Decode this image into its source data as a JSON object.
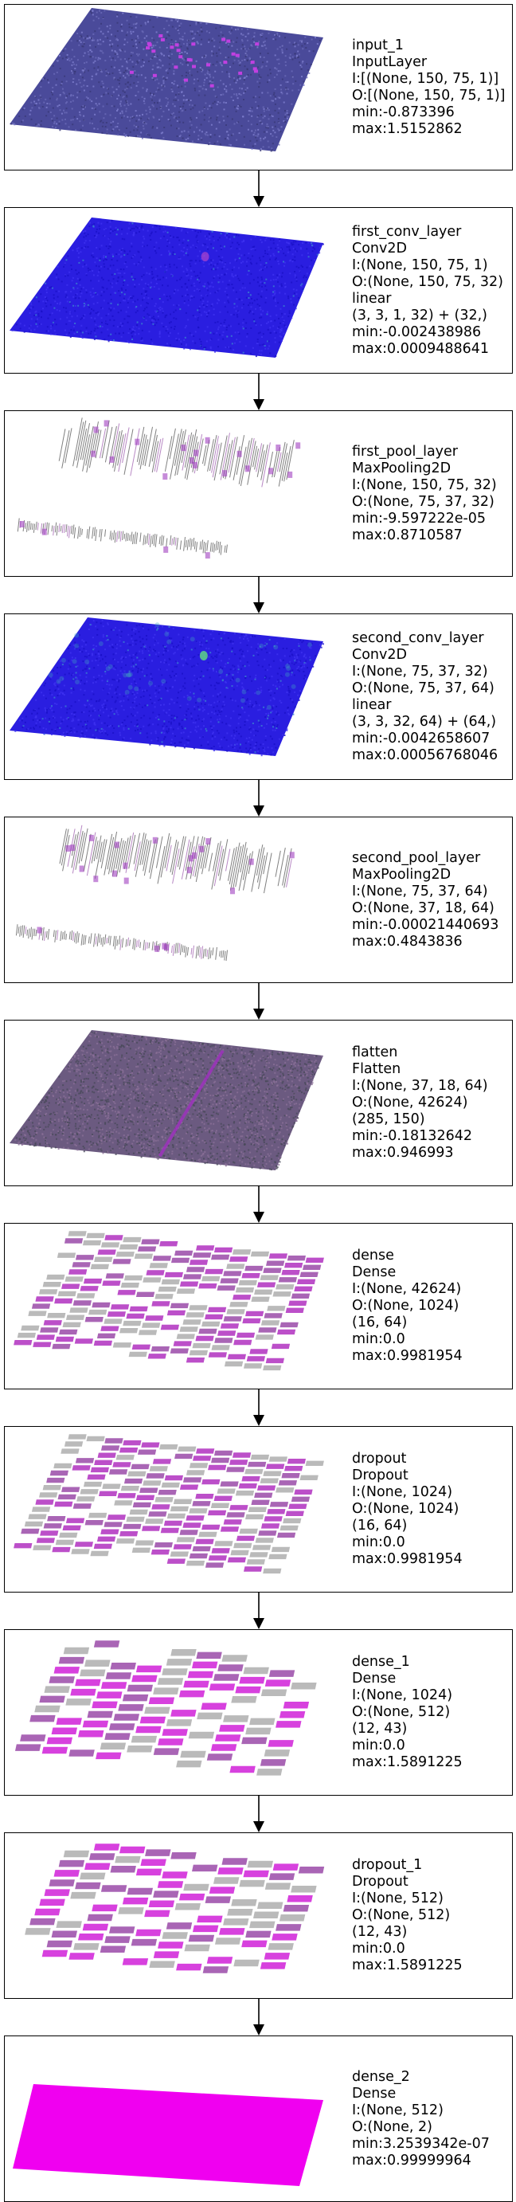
{
  "diagram": {
    "layers": [
      {
        "id": "input-1",
        "viz": "flat",
        "lines": [
          "input_1",
          "InputLayer",
          "I:[(None, 150, 75, 1)]",
          "O:[(None, 150, 75, 1)]",
          "min:-0.873396",
          "max:1.5152862"
        ]
      },
      {
        "id": "first-conv-layer",
        "viz": "flat",
        "lines": [
          "first_conv_layer",
          "Conv2D",
          "I:(None, 150, 75, 1)",
          "O:(None, 150, 75, 32)",
          "linear",
          "(3, 3, 1, 32) + (32,)",
          "min:-0.002438986",
          "max:0.0009488641"
        ]
      },
      {
        "id": "first-pool-layer",
        "viz": "stripes",
        "lines": [
          "first_pool_layer",
          "MaxPooling2D",
          "I:(None, 150, 75, 32)",
          "O:(None, 75, 37, 32)",
          "min:-9.597222e-05",
          "max:0.8710587"
        ]
      },
      {
        "id": "second-conv-layer",
        "viz": "flat",
        "lines": [
          "second_conv_layer",
          "Conv2D",
          "I:(None, 75, 37, 32)",
          "O:(None, 75, 37, 64)",
          "linear",
          "(3, 3, 32, 64) + (64,)",
          "min:-0.0042658607",
          "max:0.00056768046"
        ]
      },
      {
        "id": "second-pool-layer",
        "viz": "stripes",
        "lines": [
          "second_pool_layer",
          "MaxPooling2D",
          "I:(None, 75, 37, 64)",
          "O:(None, 37, 18, 64)",
          "min:-0.00021440693",
          "max:0.4843836"
        ]
      },
      {
        "id": "flatten",
        "viz": "flat",
        "lines": [
          "flatten",
          "Flatten",
          "I:(None, 37, 18, 64)",
          "O:(None, 42624)",
          "(285, 150)",
          "min:-0.18132642",
          "max:0.946993"
        ]
      },
      {
        "id": "dense",
        "viz": "blocks",
        "lines": [
          "dense",
          "Dense",
          "I:(None, 42624)",
          "O:(None, 1024)",
          "(16, 64)",
          "min:0.0",
          "max:0.9981954"
        ]
      },
      {
        "id": "dropout",
        "viz": "blocks",
        "lines": [
          "dropout",
          "Dropout",
          "I:(None, 1024)",
          "O:(None, 1024)",
          "(16, 64)",
          "min:0.0",
          "max:0.9981954"
        ]
      },
      {
        "id": "dense-1",
        "viz": "blocks",
        "lines": [
          "dense_1",
          "Dense",
          "I:(None, 1024)",
          "O:(None, 512)",
          "(12, 43)",
          "min:0.0",
          "max:1.5891225"
        ]
      },
      {
        "id": "dropout-1",
        "viz": "blocks",
        "lines": [
          "dropout_1",
          "Dropout",
          "I:(None, 512)",
          "O:(None, 512)",
          "(12, 43)",
          "min:0.0",
          "max:1.5891225"
        ]
      },
      {
        "id": "dense-2",
        "viz": "solid",
        "lines": [
          "dense_2",
          "Dense",
          "I:(None, 512)",
          "O:(None, 2)",
          "min:3.2539342e-07",
          "max:0.99999964"
        ]
      }
    ]
  }
}
